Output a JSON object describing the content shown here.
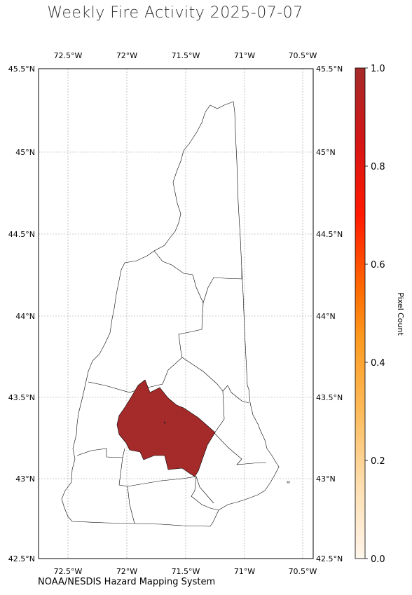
{
  "title": "Weekly Fire Activity 2025-07-07",
  "credit": "NOAA/NESDIS Hazard Mapping System",
  "map": {
    "lon_range": [
      -72.75,
      -70.4
    ],
    "lat_range": [
      42.5,
      45.5
    ],
    "lon_ticks": [
      "72.5°W",
      "72°W",
      "71.5°W",
      "71°W",
      "70.5°W"
    ],
    "lon_tick_values": [
      -72.5,
      -72.0,
      -71.5,
      -71.0,
      -70.5
    ],
    "lat_ticks": [
      "45.5°N",
      "45°N",
      "44.5°N",
      "44°N",
      "43.5°N",
      "43°N",
      "42.5°N"
    ],
    "lat_tick_values": [
      45.5,
      45.0,
      44.5,
      44.0,
      43.5,
      43.0,
      42.5
    ],
    "highlight_color": "#a52a2a",
    "boundary_color": "#000000",
    "grid": true
  },
  "colorbar": {
    "label": "Pixel Count",
    "ticks": [
      "0.0",
      "0.2",
      "0.4",
      "0.6",
      "0.8",
      "1.0"
    ],
    "tick_values": [
      0.0,
      0.2,
      0.4,
      0.6,
      0.8,
      1.0
    ],
    "colors": [
      "#fff5eb",
      "#fdd49e",
      "#fdae34",
      "#fd8d00",
      "#ff4500",
      "#ff0000",
      "#cc1111",
      "#a52a2a"
    ]
  }
}
